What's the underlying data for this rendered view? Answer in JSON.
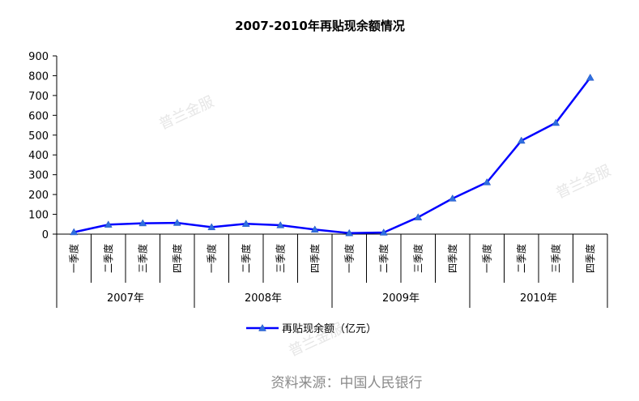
{
  "chart_data": {
    "type": "line",
    "title": "2007-2010年再贴现余额情况",
    "xlabel": "",
    "ylabel": "",
    "ylim": [
      0,
      900
    ],
    "yticks": [
      0,
      100,
      200,
      300,
      400,
      500,
      600,
      700,
      800,
      900
    ],
    "grid": false,
    "legend_position": "bottom",
    "groups": [
      {
        "label": "2007年",
        "quarters": [
          "一季度",
          "二季度",
          "三季度",
          "四季度"
        ]
      },
      {
        "label": "2008年",
        "quarters": [
          "一季度",
          "二季度",
          "三季度",
          "四季度"
        ]
      },
      {
        "label": "2009年",
        "quarters": [
          "一季度",
          "二季度",
          "三季度",
          "四季度"
        ]
      },
      {
        "label": "2010年",
        "quarters": [
          "一季度",
          "二季度",
          "三季度",
          "四季度"
        ]
      }
    ],
    "series": [
      {
        "name": "再贴现余额（亿元）",
        "color": "#0000ff",
        "marker": "triangle",
        "values": [
          10,
          48,
          55,
          57,
          35,
          52,
          45,
          23,
          5,
          8,
          85,
          180,
          262,
          472,
          562,
          790
        ]
      }
    ]
  },
  "watermarks": [
    "普兰金服",
    "普兰金服",
    "普兰金服"
  ],
  "source_text": "资料来源：中国人民银行"
}
